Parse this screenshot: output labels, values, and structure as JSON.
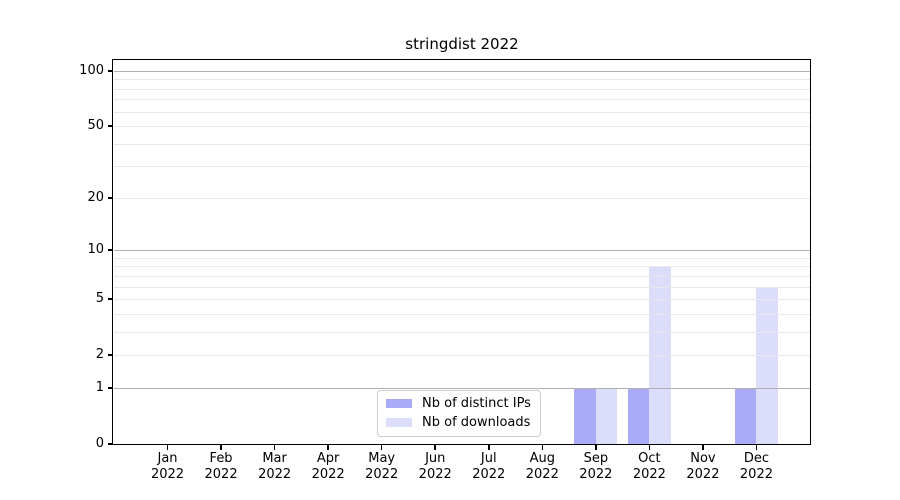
{
  "chart_data": {
    "type": "bar",
    "title": "stringdist 2022",
    "categories": [
      "Jan 2022",
      "Feb 2022",
      "Mar 2022",
      "Apr 2022",
      "May 2022",
      "Jun 2022",
      "Jul 2022",
      "Aug 2022",
      "Sep 2022",
      "Oct 2022",
      "Nov 2022",
      "Dec 2022"
    ],
    "series": [
      {
        "name": "Nb of distinct IPs",
        "color": "#a9aaf8",
        "values": [
          0,
          0,
          0,
          0,
          0,
          0,
          0,
          0,
          1,
          1,
          0,
          1
        ]
      },
      {
        "name": "Nb of downloads",
        "color": "#dcddfa",
        "values": [
          0,
          0,
          0,
          0,
          0,
          0,
          0,
          0,
          1,
          8,
          0,
          6
        ]
      }
    ],
    "xlabel": "",
    "ylabel": "",
    "y_scale": "log1p",
    "y_max": 113,
    "y_tick_values": [
      0,
      1,
      2,
      5,
      10,
      20,
      50,
      100
    ],
    "y_tick_labels": [
      "0",
      "1",
      "2",
      "5",
      "10",
      "20",
      "50",
      "100"
    ],
    "y_major_gridlines": [
      1,
      10,
      100
    ],
    "y_minor_gridlines": [
      2,
      3,
      4,
      5,
      6,
      7,
      8,
      9,
      20,
      30,
      40,
      50,
      60,
      70,
      80,
      90
    ],
    "grid": "on",
    "legend_position": "lower center (inside plot)",
    "colors": {
      "background": "#ffffff",
      "axis": "#000000",
      "major_grid": "#b0b0b0",
      "minor_grid": "#e8e8e8",
      "legend_border": "#cccccc"
    }
  }
}
